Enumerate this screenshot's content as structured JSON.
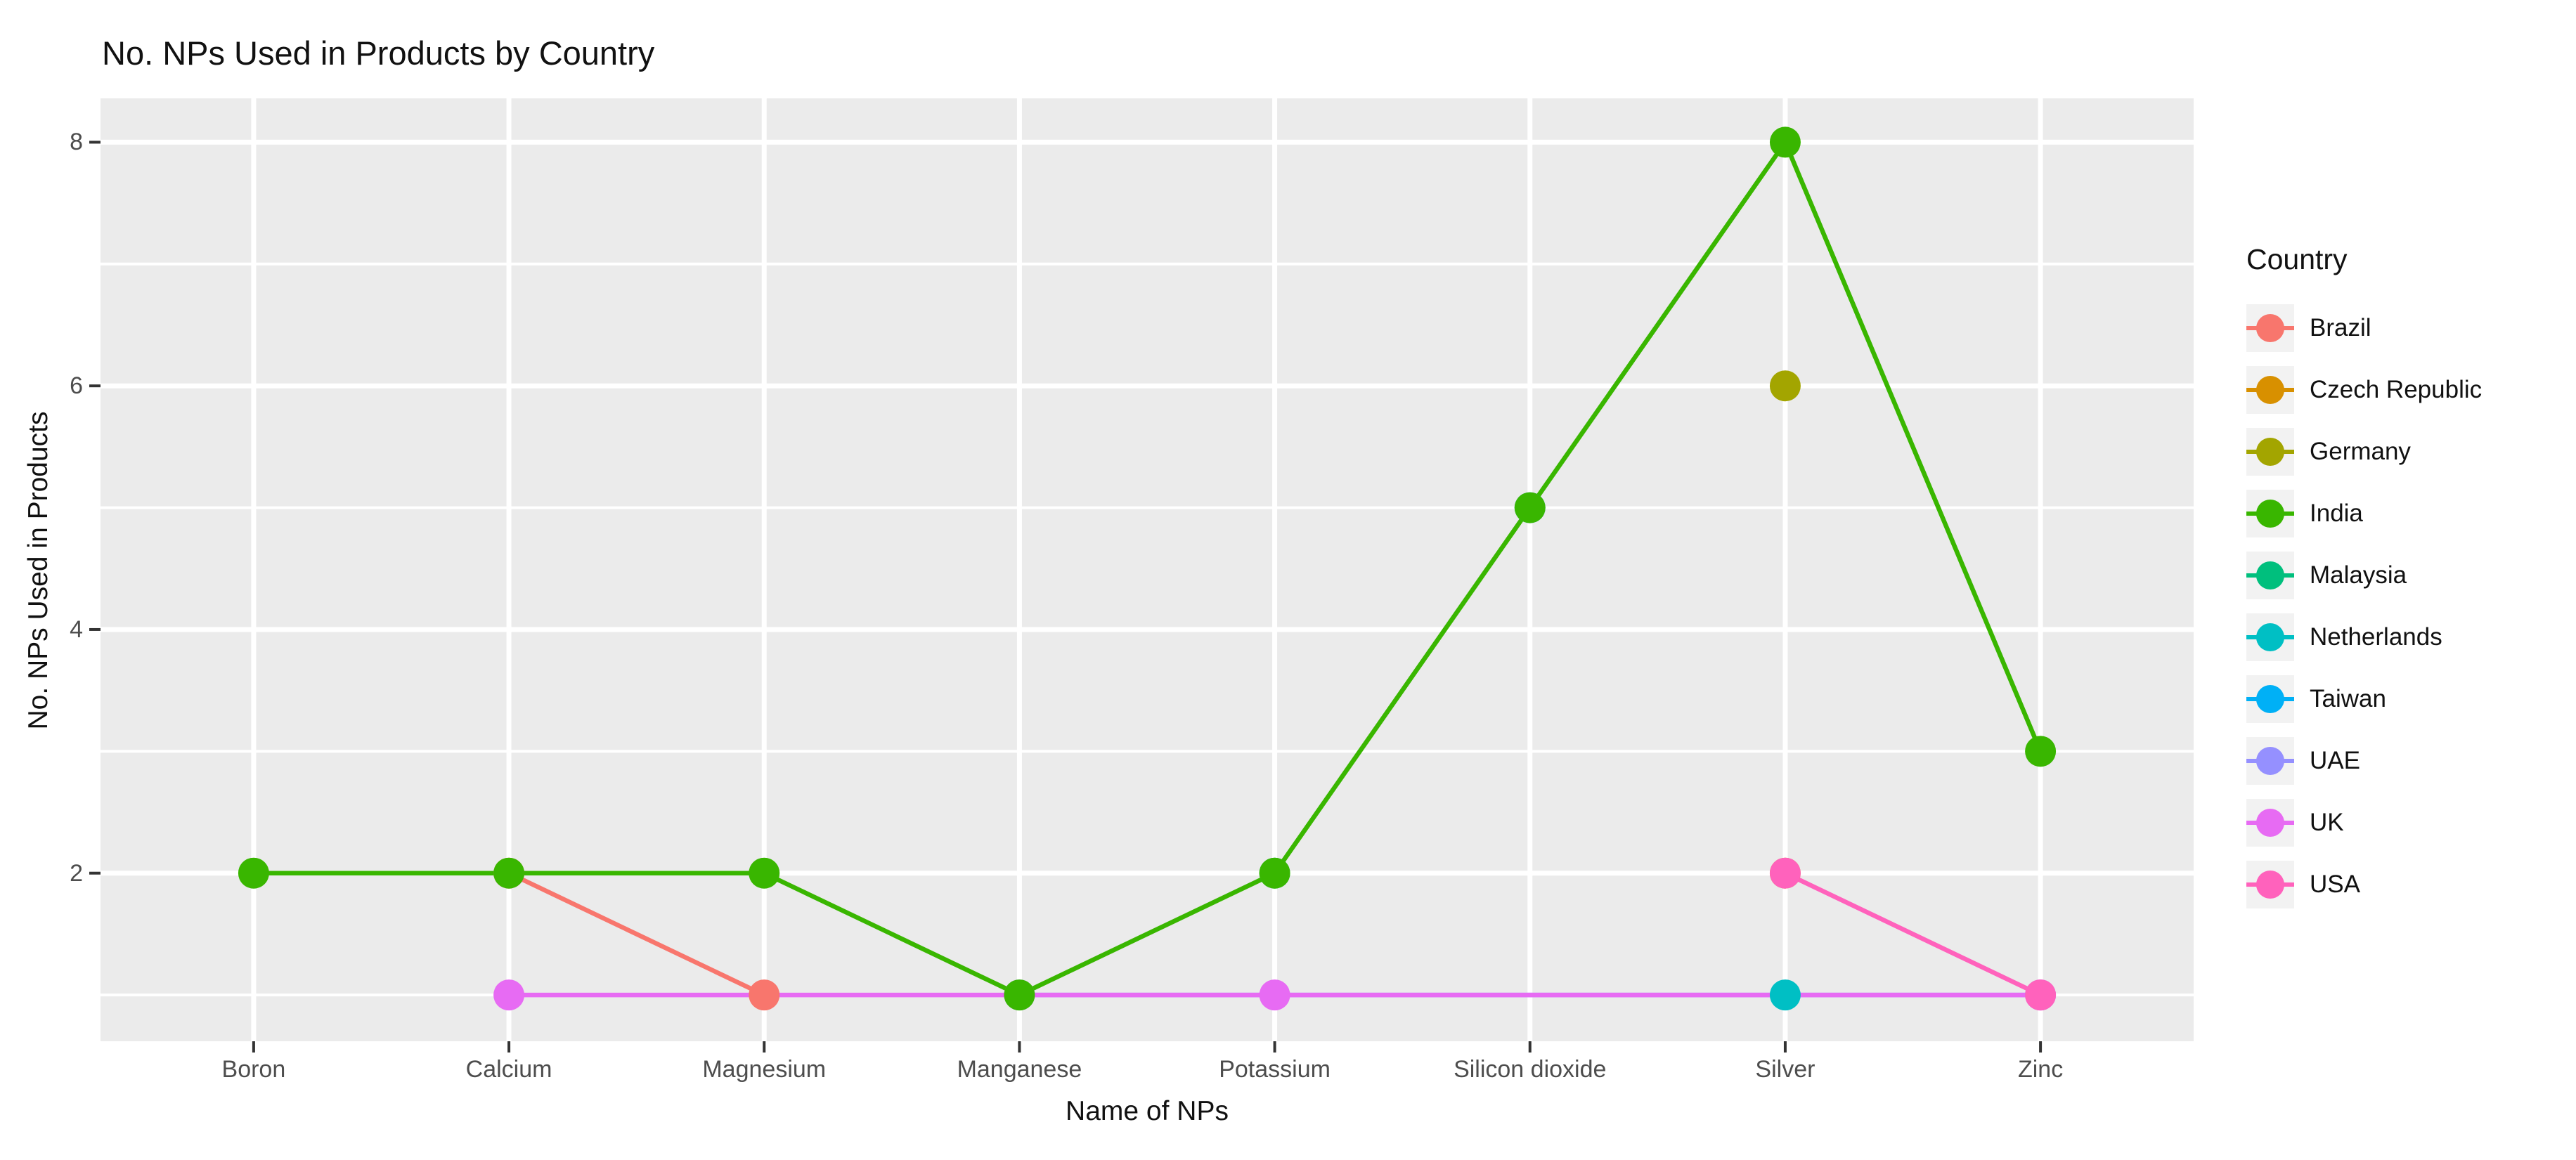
{
  "page": {
    "title": "No. NPs Used in Products by Country"
  },
  "colors": {
    "page_bg": "#FFFFFF",
    "panel_bg": "#EBEBEB",
    "gridline": "#FFFFFF",
    "tick_mark": "#333333",
    "tick_label": "#4D4D4D",
    "text": "#111111",
    "legend_key_bg": "#F2F2F2"
  },
  "chart_data": {
    "type": "line",
    "title": "No. NPs Used in Products by Country",
    "xlabel": "Name of NPs",
    "ylabel": "No. NPs Used in Products",
    "legend_title": "Country",
    "legend_position": "right",
    "grid": "white major gridlines at y=2,4,6,8 and minor at y=1,3,5,7 on grey panel; vertical major gridline at each category",
    "categories": [
      "Boron",
      "Calcium",
      "Magnesium",
      "Manganese",
      "Potassium",
      "Silicon dioxide",
      "Silver",
      "Zinc"
    ],
    "ylim": [
      1,
      8
    ],
    "yticks_major": [
      2,
      4,
      6,
      8
    ],
    "yticks_minor": [
      1,
      3,
      5,
      7
    ],
    "series": [
      {
        "name": "Brazil",
        "color": "#F8766D",
        "points": [
          {
            "x": "Calcium",
            "y": 2
          },
          {
            "x": "Magnesium",
            "y": 1
          }
        ]
      },
      {
        "name": "Czech Republic",
        "color": "#D89000",
        "points": [
          {
            "x": "Silver",
            "y": 2
          }
        ]
      },
      {
        "name": "Germany",
        "color": "#A3A500",
        "points": [
          {
            "x": "Silver",
            "y": 6
          }
        ]
      },
      {
        "name": "India",
        "color": "#39B600",
        "points": [
          {
            "x": "Boron",
            "y": 2
          },
          {
            "x": "Calcium",
            "y": 2,
            "hidden": true
          },
          {
            "x": "Magnesium",
            "y": 2
          },
          {
            "x": "Manganese",
            "y": 1,
            "hidden": true
          },
          {
            "x": "Potassium",
            "y": 2,
            "hidden": true
          },
          {
            "x": "Silicon dioxide",
            "y": 5,
            "hidden": true
          },
          {
            "x": "Silver",
            "y": 8
          },
          {
            "x": "Zinc",
            "y": 3
          }
        ]
      },
      {
        "name": "Malaysia",
        "color": "#00BF7D",
        "points": [
          {
            "x": "Potassium",
            "y": 2
          }
        ]
      },
      {
        "name": "Netherlands",
        "color": "#00BFC4",
        "points": [
          {
            "x": "Silver",
            "y": 1
          }
        ]
      },
      {
        "name": "Taiwan",
        "color": "#00B0F6",
        "points": [
          {
            "x": "Silicon dioxide",
            "y": 5
          }
        ]
      },
      {
        "name": "UAE",
        "color": "#9590FF",
        "points": [
          {
            "x": "Manganese",
            "y": 1
          },
          {
            "x": "Zinc",
            "y": 1
          }
        ]
      },
      {
        "name": "UK",
        "color": "#E76BF3",
        "points": [
          {
            "x": "Calcium",
            "y": 1
          },
          {
            "x": "Potassium",
            "y": 1
          },
          {
            "x": "Zinc",
            "y": 1,
            "hidden": true
          }
        ]
      },
      {
        "name": "USA",
        "color": "#FF62BC",
        "points": [
          {
            "x": "Silver",
            "y": 2,
            "hidden": true
          },
          {
            "x": "Zinc",
            "y": 1,
            "hidden": true
          }
        ]
      }
    ]
  }
}
